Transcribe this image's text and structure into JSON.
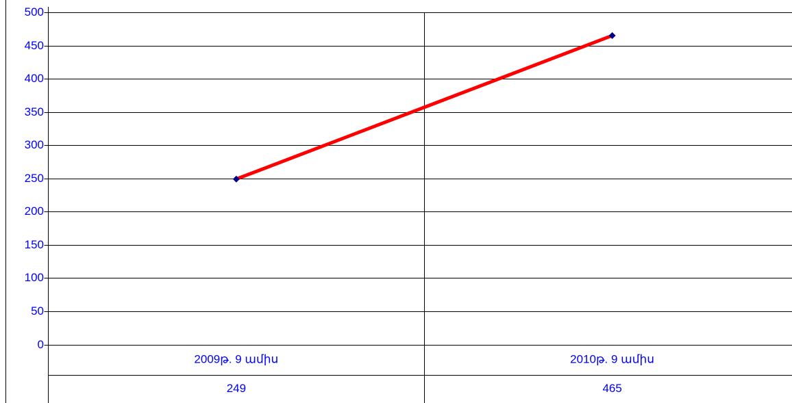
{
  "chart_data": {
    "type": "line",
    "categories": [
      "2009թ. 9 ամիս",
      "2010թ. 9 ամիս"
    ],
    "series": [
      {
        "name": null,
        "color": "#ff0000",
        "marker_color": "#00008b",
        "values": [
          249,
          465
        ]
      }
    ],
    "ylim": [
      0,
      500
    ],
    "yticks": [
      0,
      50,
      100,
      150,
      200,
      250,
      300,
      350,
      400,
      450,
      500
    ],
    "grid": true
  }
}
